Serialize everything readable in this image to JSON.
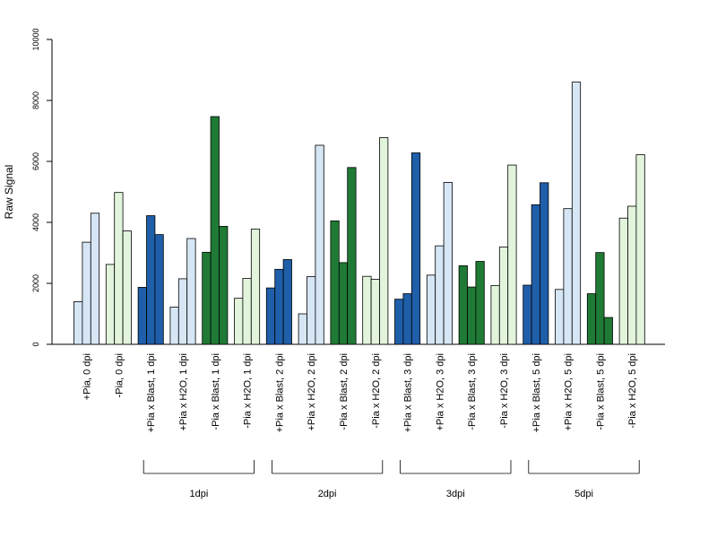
{
  "chart_data": {
    "type": "bar",
    "ylabel": "Raw Signal",
    "ylim": [
      0,
      10000
    ],
    "y_ticks": [
      "0",
      "2000",
      "4000",
      "6000",
      "8000",
      "10000"
    ],
    "grid": false,
    "categories": [
      "+Pia, 0 dpi",
      "-Pia, 0 dpi",
      "+Pia x Blast, 1 dpi",
      "+Pia x H2O, 1 dpi",
      "-Pia x Blast, 1 dpi",
      "-Pia x H2O, 1 dpi",
      "+Pia x Blast, 2 dpi",
      "+Pia x H2O, 2 dpi",
      "-Pia x Blast, 2 dpi",
      "-Pia x H2O, 2 dpi",
      "+Pia x Blast, 3 dpi",
      "+Pia x H2O, 3 dpi",
      "-Pia x Blast, 3 dpi",
      "-Pia x H2O, 3 dpi",
      "+Pia x Blast, 5 dpi",
      "+Pia x H2O, 5 dpi",
      "-Pia x Blast, 5 dpi",
      "-Pia x H2O, 5 dpi"
    ],
    "values": [
      [
        1400,
        3350,
        4300
      ],
      [
        2620,
        4980,
        3720
      ],
      [
        1870,
        4220,
        3600
      ],
      [
        1220,
        2150,
        3470
      ],
      [
        3020,
        7470,
        3870
      ],
      [
        1510,
        2160,
        3780
      ],
      [
        1850,
        2460,
        2780
      ],
      [
        1000,
        2220,
        6530
      ],
      [
        4050,
        2680,
        5800
      ],
      [
        2230,
        2130,
        6780
      ],
      [
        1480,
        1660,
        6280
      ],
      [
        2270,
        3230,
        5310
      ],
      [
        2580,
        1880,
        2720
      ],
      [
        1930,
        3190,
        5880
      ],
      [
        1940,
        4580,
        5300
      ],
      [
        1800,
        4450,
        8600
      ],
      [
        1660,
        3010,
        880
      ],
      [
        4140,
        4530,
        6220
      ]
    ],
    "bar_colors": [
      "#d6e6f5",
      "#e2f4dc",
      "#1f5ea8",
      "#d6e6f5",
      "#1f7a35",
      "#e2f4dc",
      "#1f5ea8",
      "#d6e6f5",
      "#1f7a35",
      "#e2f4dc",
      "#1f5ea8",
      "#d6e6f5",
      "#1f7a35",
      "#e2f4dc",
      "#1f5ea8",
      "#d6e6f5",
      "#1f7a35",
      "#e2f4dc"
    ],
    "groups": [
      {
        "label": "1dpi",
        "first": 2,
        "last": 5
      },
      {
        "label": "2dpi",
        "first": 6,
        "last": 9
      },
      {
        "label": "3dpi",
        "first": 10,
        "last": 13
      },
      {
        "label": "5dpi",
        "first": 14,
        "last": 17
      }
    ]
  }
}
